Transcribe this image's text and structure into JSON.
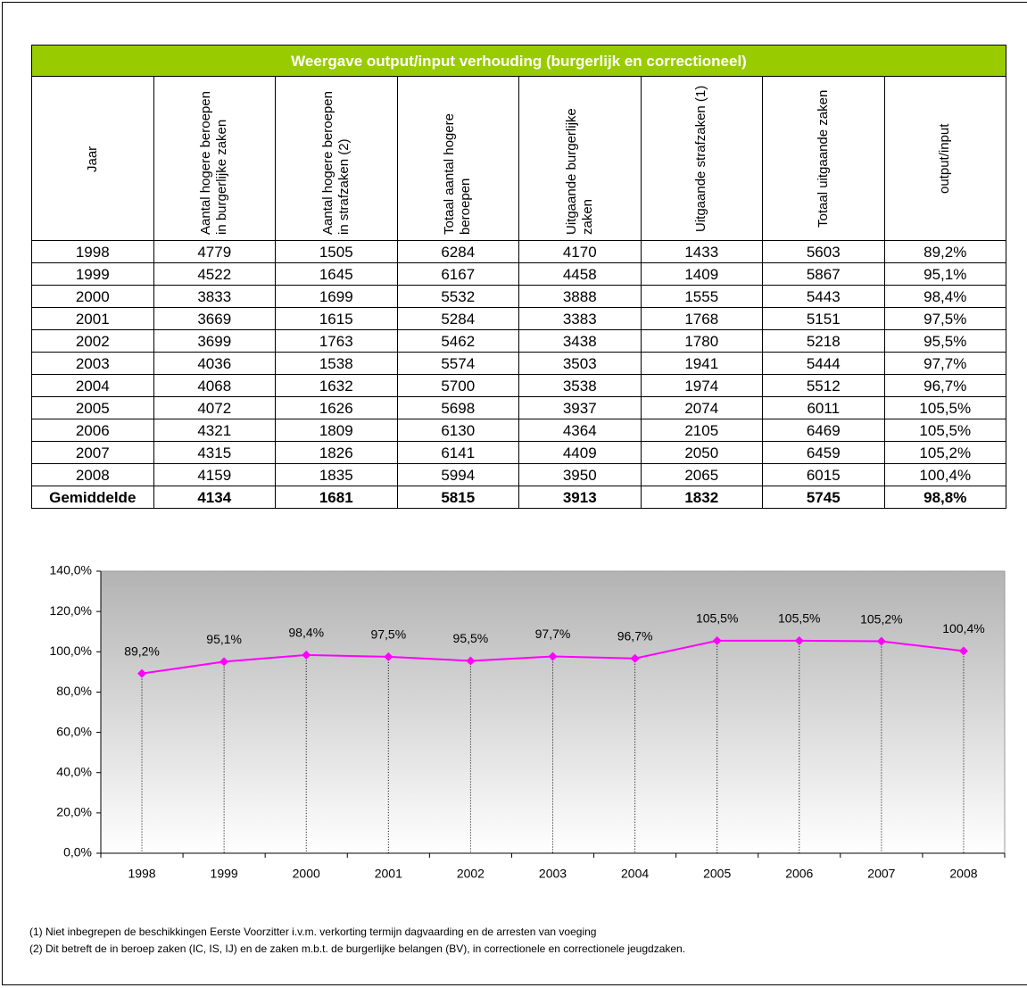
{
  "table": {
    "title": "Weergave output/input verhouding (burgerlijk en correctioneel)",
    "columns": [
      "Jaar",
      "Aantal hogere beroepen in burgerlijke zaken",
      "Aantal hogere beroepen in strafzaken (2)",
      "Totaal aantal hogere beroepen",
      "Uitgaande burgerlijke zaken",
      "Uitgaande strafzaken (1)",
      "Totaal uitgaande zaken",
      "output/input"
    ],
    "rows": [
      [
        "1998",
        "4779",
        "1505",
        "6284",
        "4170",
        "1433",
        "5603",
        "89,2%"
      ],
      [
        "1999",
        "4522",
        "1645",
        "6167",
        "4458",
        "1409",
        "5867",
        "95,1%"
      ],
      [
        "2000",
        "3833",
        "1699",
        "5532",
        "3888",
        "1555",
        "5443",
        "98,4%"
      ],
      [
        "2001",
        "3669",
        "1615",
        "5284",
        "3383",
        "1768",
        "5151",
        "97,5%"
      ],
      [
        "2002",
        "3699",
        "1763",
        "5462",
        "3438",
        "1780",
        "5218",
        "95,5%"
      ],
      [
        "2003",
        "4036",
        "1538",
        "5574",
        "3503",
        "1941",
        "5444",
        "97,7%"
      ],
      [
        "2004",
        "4068",
        "1632",
        "5700",
        "3538",
        "1974",
        "5512",
        "96,7%"
      ],
      [
        "2005",
        "4072",
        "1626",
        "5698",
        "3937",
        "2074",
        "6011",
        "105,5%"
      ],
      [
        "2006",
        "4321",
        "1809",
        "6130",
        "4364",
        "2105",
        "6469",
        "105,5%"
      ],
      [
        "2007",
        "4315",
        "1826",
        "6141",
        "4409",
        "2050",
        "6459",
        "105,2%"
      ],
      [
        "2008",
        "4159",
        "1835",
        "5994",
        "3950",
        "2065",
        "6015",
        "100,4%"
      ]
    ],
    "total": [
      "Gemiddelde",
      "4134",
      "1681",
      "5815",
      "3913",
      "1832",
      "5745",
      "98,8%"
    ]
  },
  "chart_data": {
    "type": "line",
    "categories": [
      "1998",
      "1999",
      "2000",
      "2001",
      "2002",
      "2003",
      "2004",
      "2005",
      "2006",
      "2007",
      "2008"
    ],
    "values": [
      89.2,
      95.1,
      98.4,
      97.5,
      95.5,
      97.7,
      96.7,
      105.5,
      105.5,
      105.2,
      100.4
    ],
    "value_labels": [
      "89,2%",
      "95,1%",
      "98,4%",
      "97,5%",
      "95,5%",
      "97,7%",
      "96,7%",
      "105,5%",
      "105,5%",
      "105,2%",
      "100,4%"
    ],
    "color": "#ff00ff",
    "marker": "diamond",
    "drop_lines": true,
    "ylim": [
      0,
      140
    ],
    "yticks": [
      {
        "value": 0,
        "label": "0,0%"
      },
      {
        "value": 20,
        "label": "20,0%"
      },
      {
        "value": 40,
        "label": "40,0%"
      },
      {
        "value": 60,
        "label": "60,0%"
      },
      {
        "value": 80,
        "label": "80,0%"
      },
      {
        "value": 100,
        "label": "100,0%"
      },
      {
        "value": 120,
        "label": "120,0%"
      },
      {
        "value": 140,
        "label": "140,0%"
      }
    ]
  },
  "footnotes": [
    "(1) Niet inbegrepen de beschikkingen Eerste Voorzitter i.v.m. verkorting termijn dagvaarding en de arresten van voeging",
    "(2) Dit betreft de in beroep zaken (IC, IS, IJ) en de zaken m.b.t. de burgerlijke belangen (BV), in correctionele en correctionele jeugdzaken."
  ]
}
